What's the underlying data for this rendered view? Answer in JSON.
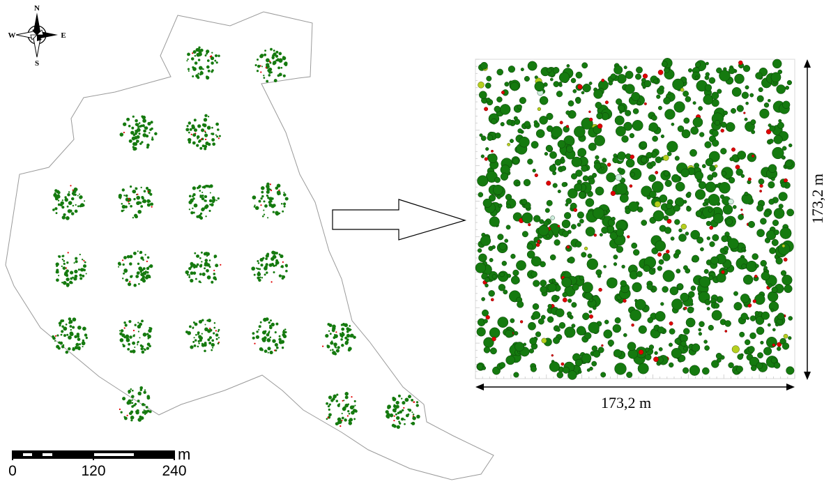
{
  "compass": {
    "north": "N",
    "south": "S",
    "east": "E",
    "west": "W"
  },
  "scale_bar": {
    "unit": "m",
    "labels": [
      "0",
      "120",
      "240"
    ]
  },
  "detail_plot": {
    "width_label": "173,2 m",
    "height_label": "173,2 m"
  },
  "sample_plot_count": 19,
  "colors": {
    "tree_green": "#157a0f",
    "tree_red": "#e00000",
    "tree_yellowgreen": "#b5cf1e",
    "tree_pale": "#cfeedd",
    "boundary": "#9a9a9a"
  }
}
